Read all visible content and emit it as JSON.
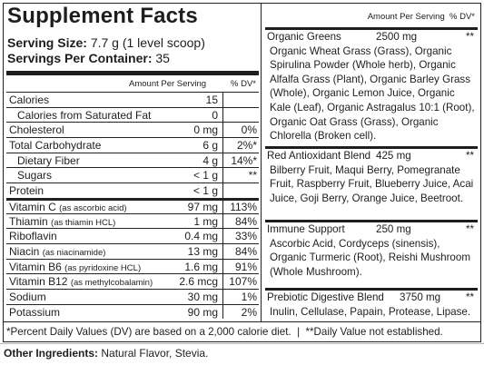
{
  "label": {
    "title": "Supplement Facts",
    "serving_size_label": "Serving Size:",
    "serving_size": "7.7 g (1 level scoop)",
    "servings_label": "Servings Per Container:",
    "servings": "35",
    "header_amount": "Amount Per Serving",
    "header_dv": "% DV*",
    "rows": [
      {
        "name": "Calories",
        "amount": "15"
      },
      {
        "name": "Calories from Saturated Fat",
        "amount": "0"
      },
      {
        "name": "Cholesterol",
        "amount": "0 mg",
        "dv": "0%"
      },
      {
        "name": "Total Carbohydrate",
        "amount": "6 g",
        "dv": "2%*"
      },
      {
        "name": "Dietary Fiber",
        "amount": "4 g",
        "dv": "14%*"
      },
      {
        "name": "Sugars",
        "amount": "< 1 g",
        "dv": "**"
      },
      {
        "name": "Protein",
        "amount": "< 1 g"
      },
      {
        "name": "Vitamin C",
        "note": "(as ascorbic acid)",
        "amount": "97 mg",
        "dv": "113%"
      },
      {
        "name": "Thiamin",
        "note": "(as thiamin HCL)",
        "amount": "1 mg",
        "dv": "84%"
      },
      {
        "name": "Riboflavin",
        "amount": "0.4 mg",
        "dv": "33%"
      },
      {
        "name": "Niacin",
        "note": "(as niacinamide)",
        "amount": "13 mg",
        "dv": "84%"
      },
      {
        "name": "Vitamin B6",
        "note": "(as pyridoxine HCL)",
        "amount": "1.6 mg",
        "dv": "91%"
      },
      {
        "name": "Vitamin B12",
        "note": "(as methylcobalamin)",
        "amount": "2.6 mcg",
        "dv": "107%"
      },
      {
        "name": "Sodium",
        "amount": "30 mg",
        "dv": "1%"
      },
      {
        "name": "Potassium",
        "amount": "90 mg",
        "dv": "2%"
      }
    ],
    "right_header": "Amount Per Serving  % DV*",
    "blends": [
      {
        "name": "Organic Greens",
        "amount": "2500 mg",
        "dv": "**",
        "ingredients": "Organic Wheat Grass (Grass), Organic Spirulina Powder (Whole herb), Organic Alfalfa Grass (Plant), Organic Barley Grass (Whole), Organic Lemon Juice, Organic Kale (Leaf), Organic Astragalus 10:1 (Root), Organic Oat Grass (Grass), Organic Chlorella (Broken cell)."
      },
      {
        "name": "Red Antioxidant Blend",
        "amount": "425 mg",
        "dv": "**",
        "ingredients": "Bilberry Fruit, Maqui Berry, Pomegranate Fruit, Raspberry Fruit, Blueberry Juice, Acai Juice, Goji Berry, Orange Juice, Beetroot."
      },
      {
        "name": "Immune Support",
        "amount": "250 mg",
        "dv": "**",
        "ingredients": "Ascorbic Acid, Cordyceps (sinensis), Organic Turmeric (Root), Reishi Mushroom (Whole Mushroom)."
      },
      {
        "name": "Prebiotic Digestive Blend",
        "amount": "3750 mg",
        "dv": "**",
        "ingredients": "Inulin, Cellulase, Papain, Protease, Lipase."
      }
    ],
    "footnote": "*Percent Daily Values (DV) are based on a 2,000 calorie diet.  |  **Daily Value not established.",
    "other_label": "Other Ingredients:",
    "other": "Natural Flavor, Stevia."
  }
}
